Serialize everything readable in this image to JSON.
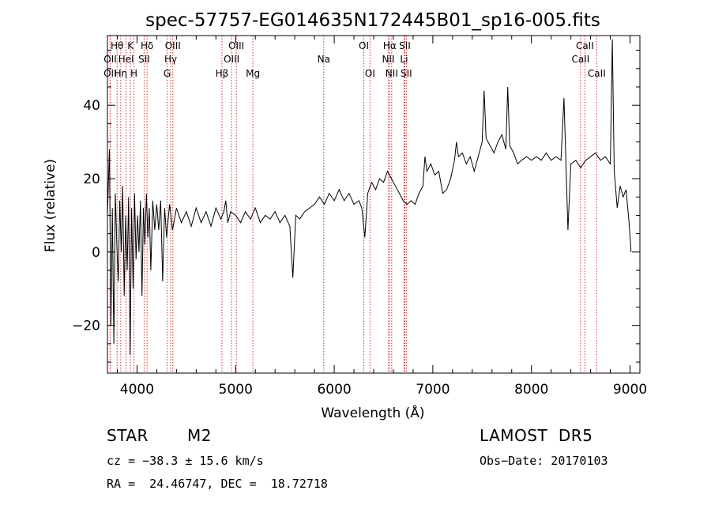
{
  "chart_data": {
    "type": "line",
    "title": "spec-57757-EG014635N172445B01_sp16-005.fits",
    "xlabel": "Wavelength (Å)",
    "ylabel": "Flux (relative)",
    "xlim": [
      3700,
      9100
    ],
    "ylim": [
      -33,
      59
    ],
    "xticks": [
      4000,
      5000,
      6000,
      7000,
      8000,
      9000
    ],
    "yticks": [
      -20,
      0,
      20,
      40
    ],
    "grid": false,
    "series": [
      {
        "points": [
          [
            3700,
            10
          ],
          [
            3720,
            28
          ],
          [
            3735,
            -20
          ],
          [
            3750,
            12
          ],
          [
            3765,
            -25
          ],
          [
            3780,
            16
          ],
          [
            3795,
            2
          ],
          [
            3810,
            -8
          ],
          [
            3825,
            14
          ],
          [
            3840,
            0
          ],
          [
            3855,
            18
          ],
          [
            3870,
            -12
          ],
          [
            3885,
            10
          ],
          [
            3900,
            -5
          ],
          [
            3915,
            15
          ],
          [
            3930,
            -28
          ],
          [
            3945,
            12
          ],
          [
            3960,
            -10
          ],
          [
            3975,
            16
          ],
          [
            3990,
            -2
          ],
          [
            4005,
            10
          ],
          [
            4020,
            0
          ],
          [
            4035,
            14
          ],
          [
            4050,
            -12
          ],
          [
            4065,
            12
          ],
          [
            4080,
            2
          ],
          [
            4095,
            16
          ],
          [
            4110,
            4
          ],
          [
            4125,
            12
          ],
          [
            4140,
            -5
          ],
          [
            4160,
            14
          ],
          [
            4180,
            6
          ],
          [
            4200,
            13
          ],
          [
            4220,
            6
          ],
          [
            4240,
            14
          ],
          [
            4260,
            -8
          ],
          [
            4280,
            12
          ],
          [
            4300,
            4
          ],
          [
            4330,
            13
          ],
          [
            4360,
            6
          ],
          [
            4400,
            12
          ],
          [
            4450,
            8
          ],
          [
            4500,
            11
          ],
          [
            4550,
            7
          ],
          [
            4600,
            12
          ],
          [
            4650,
            8
          ],
          [
            4700,
            11
          ],
          [
            4750,
            7
          ],
          [
            4800,
            12
          ],
          [
            4850,
            9
          ],
          [
            4880,
            11
          ],
          [
            4900,
            14
          ],
          [
            4920,
            8
          ],
          [
            4950,
            11
          ],
          [
            5000,
            10
          ],
          [
            5050,
            8
          ],
          [
            5100,
            11
          ],
          [
            5150,
            9
          ],
          [
            5200,
            12
          ],
          [
            5250,
            8
          ],
          [
            5300,
            10
          ],
          [
            5350,
            9
          ],
          [
            5400,
            11
          ],
          [
            5450,
            8
          ],
          [
            5500,
            10
          ],
          [
            5550,
            7
          ],
          [
            5580,
            -7
          ],
          [
            5610,
            10
          ],
          [
            5650,
            9
          ],
          [
            5700,
            11
          ],
          [
            5750,
            12
          ],
          [
            5800,
            13
          ],
          [
            5850,
            15
          ],
          [
            5900,
            13
          ],
          [
            5950,
            16
          ],
          [
            6000,
            14
          ],
          [
            6050,
            17
          ],
          [
            6100,
            14
          ],
          [
            6150,
            16
          ],
          [
            6200,
            13
          ],
          [
            6250,
            14
          ],
          [
            6280,
            12
          ],
          [
            6310,
            4
          ],
          [
            6340,
            16
          ],
          [
            6380,
            19
          ],
          [
            6420,
            17
          ],
          [
            6460,
            20
          ],
          [
            6500,
            19
          ],
          [
            6540,
            22
          ],
          [
            6580,
            20
          ],
          [
            6620,
            18
          ],
          [
            6660,
            16
          ],
          [
            6700,
            14
          ],
          [
            6740,
            13
          ],
          [
            6780,
            14
          ],
          [
            6820,
            13
          ],
          [
            6860,
            16
          ],
          [
            6900,
            18
          ],
          [
            6920,
            26
          ],
          [
            6940,
            22
          ],
          [
            6980,
            24
          ],
          [
            7020,
            21
          ],
          [
            7060,
            22
          ],
          [
            7100,
            16
          ],
          [
            7140,
            17
          ],
          [
            7180,
            20
          ],
          [
            7220,
            25
          ],
          [
            7240,
            30
          ],
          [
            7260,
            26
          ],
          [
            7300,
            27
          ],
          [
            7340,
            24
          ],
          [
            7380,
            26
          ],
          [
            7420,
            22
          ],
          [
            7460,
            26
          ],
          [
            7500,
            30
          ],
          [
            7520,
            44
          ],
          [
            7540,
            31
          ],
          [
            7580,
            29
          ],
          [
            7620,
            27
          ],
          [
            7660,
            30
          ],
          [
            7700,
            32
          ],
          [
            7740,
            28
          ],
          [
            7760,
            45
          ],
          [
            7780,
            29
          ],
          [
            7820,
            27
          ],
          [
            7860,
            24
          ],
          [
            7900,
            25
          ],
          [
            7950,
            26
          ],
          [
            8000,
            25
          ],
          [
            8050,
            26
          ],
          [
            8100,
            25
          ],
          [
            8150,
            27
          ],
          [
            8200,
            25
          ],
          [
            8250,
            26
          ],
          [
            8300,
            25
          ],
          [
            8330,
            42
          ],
          [
            8350,
            24
          ],
          [
            8370,
            6
          ],
          [
            8400,
            24
          ],
          [
            8450,
            25
          ],
          [
            8500,
            23
          ],
          [
            8550,
            25
          ],
          [
            8600,
            26
          ],
          [
            8650,
            27
          ],
          [
            8700,
            25
          ],
          [
            8750,
            26
          ],
          [
            8800,
            24
          ],
          [
            8820,
            58
          ],
          [
            8840,
            22
          ],
          [
            8870,
            12
          ],
          [
            8900,
            18
          ],
          [
            8930,
            15
          ],
          [
            8960,
            17
          ],
          [
            8990,
            8
          ],
          [
            9010,
            0
          ]
        ]
      }
    ],
    "lines": [
      {
        "label": "Hθ",
        "x": 3798,
        "row": 1
      },
      {
        "label": "OII",
        "x": 3728,
        "row": 2
      },
      {
        "label": "OII",
        "x": 3727,
        "row": 3
      },
      {
        "label": "Hη",
        "x": 3835,
        "row": 3
      },
      {
        "label": "K",
        "x": 3934,
        "row": 1
      },
      {
        "label": "HeI",
        "x": 3889,
        "row": 2
      },
      {
        "label": "H",
        "x": 3969,
        "row": 3
      },
      {
        "label": "Hδ",
        "x": 4102,
        "row": 1
      },
      {
        "label": "SII",
        "x": 4072,
        "row": 2
      },
      {
        "label": "OIII",
        "x": 4363,
        "row": 1
      },
      {
        "label": "Hγ",
        "x": 4341,
        "row": 2
      },
      {
        "label": "G",
        "x": 4305,
        "row": 3
      },
      {
        "label": "Hβ",
        "x": 4861,
        "row": 3
      },
      {
        "label": "OIII",
        "x": 5007,
        "row": 1
      },
      {
        "label": "OIII",
        "x": 4959,
        "row": 2
      },
      {
        "label": "Mg",
        "x": 5175,
        "row": 3
      },
      {
        "label": "Na",
        "x": 5894,
        "row": 2
      },
      {
        "label": "OI",
        "x": 6300,
        "row": 1
      },
      {
        "label": "OI",
        "x": 6363,
        "row": 3
      },
      {
        "label": "Hα",
        "x": 6563,
        "row": 1
      },
      {
        "label": "NII",
        "x": 6548,
        "row": 2
      },
      {
        "label": "NII",
        "x": 6583,
        "row": 3
      },
      {
        "label": "SII",
        "x": 6716,
        "row": 1
      },
      {
        "label": "Li",
        "x": 6708,
        "row": 2
      },
      {
        "label": "SII",
        "x": 6731,
        "row": 3
      },
      {
        "label": "CaII",
        "x": 8542,
        "row": 1
      },
      {
        "label": "CaII",
        "x": 8498,
        "row": 2
      },
      {
        "label": "CaII",
        "x": 8662,
        "row": 3
      }
    ]
  },
  "info": {
    "object_type": "STAR",
    "subclass": "M2",
    "survey": "LAMOST  DR5",
    "cz": "cz = −38.3 ± 15.6 km/s",
    "obs_date": "Obs−Date: 20170103",
    "coords": "RA =  24.46747, DEC =  18.72718"
  },
  "colors": {
    "spectrum": "#000000",
    "line_markers": "#cc3333",
    "axes": "#000000"
  }
}
